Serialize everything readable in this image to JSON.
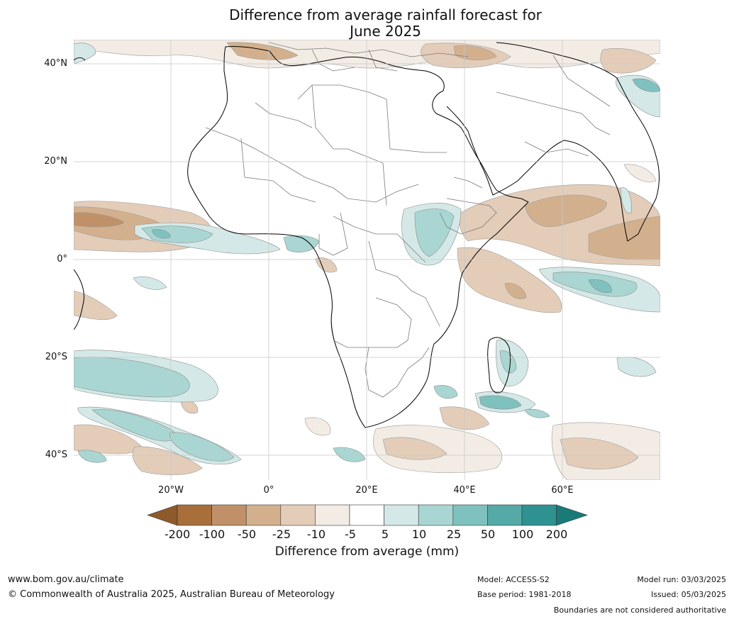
{
  "title_line1": "Difference from average rainfall forecast for",
  "title_line2": "June 2025",
  "lat_labels": [
    "40°N",
    "20°N",
    "0°",
    "20°S",
    "40°S"
  ],
  "lon_labels": [
    "20°W",
    "0°",
    "20°E",
    "40°E",
    "60°E"
  ],
  "colorbar": {
    "title": "Difference from average (mm)",
    "tick_labels": [
      "-200",
      "-100",
      "-50",
      "-25",
      "-10",
      "-5",
      "5",
      "10",
      "25",
      "50",
      "100",
      "200"
    ],
    "colors": [
      "#a86f3a",
      "#c09168",
      "#d3b08d",
      "#e3cdb9",
      "#f2ece5",
      "#ffffff",
      "#d4e9e7",
      "#a9d6d3",
      "#7fc1bf",
      "#55aaa8",
      "#2e9290"
    ],
    "under_color": "#8d5a2b",
    "over_color": "#1a7a78"
  },
  "footer": {
    "site": "www.bom.gov.au/climate",
    "copyright": "© Commonwealth of Australia 2025, Australian Bureau of Meteorology",
    "model": "Model: ACCESS-S2",
    "base_period": "Base period: 1981-2018",
    "model_run": "Model run: 03/03/2025",
    "issued": "Issued: 05/03/2025",
    "boundaries_note": "Boundaries are not considered authoritative"
  }
}
